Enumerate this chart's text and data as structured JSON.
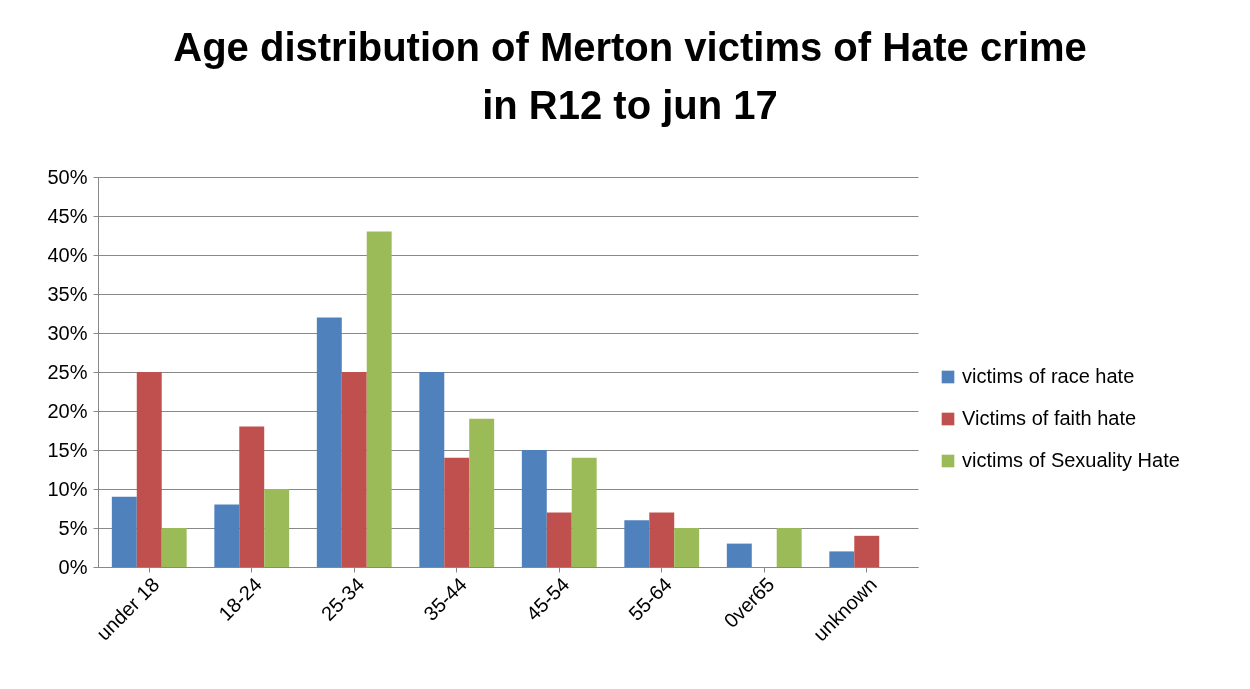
{
  "chart_data": {
    "type": "bar",
    "title": "Age distribution of Merton victims of Hate crime\nin R12 to jun 17",
    "categories": [
      "under 18",
      "18-24",
      "25-34",
      "35-44",
      "45-54",
      "55-64",
      "0ver65",
      "unknown"
    ],
    "series": [
      {
        "name": "victims of race hate",
        "color": "#4f81bd",
        "values": [
          9,
          8,
          32,
          25,
          15,
          6,
          3,
          2
        ]
      },
      {
        "name": "Victims of faith hate",
        "color": "#c0504d",
        "values": [
          25,
          18,
          25,
          14,
          7,
          7,
          0,
          4
        ]
      },
      {
        "name": "victims of Sexuality Hate",
        "color": "#9bbb59",
        "values": [
          5,
          10,
          43,
          19,
          14,
          5,
          5,
          0
        ]
      }
    ],
    "ylim": [
      0,
      50
    ],
    "yticks": [
      {
        "value": 0,
        "label": "0%"
      },
      {
        "value": 5,
        "label": "5%"
      },
      {
        "value": 10,
        "label": "10%"
      },
      {
        "value": 15,
        "label": "15%"
      },
      {
        "value": 20,
        "label": "20%"
      },
      {
        "value": 25,
        "label": "25%"
      },
      {
        "value": 30,
        "label": "30%"
      },
      {
        "value": 35,
        "label": "35%"
      },
      {
        "value": 40,
        "label": "40%"
      },
      {
        "value": 45,
        "label": "45%"
      },
      {
        "value": 50,
        "label": "50%"
      }
    ],
    "grid": "y",
    "legend": "right"
  }
}
